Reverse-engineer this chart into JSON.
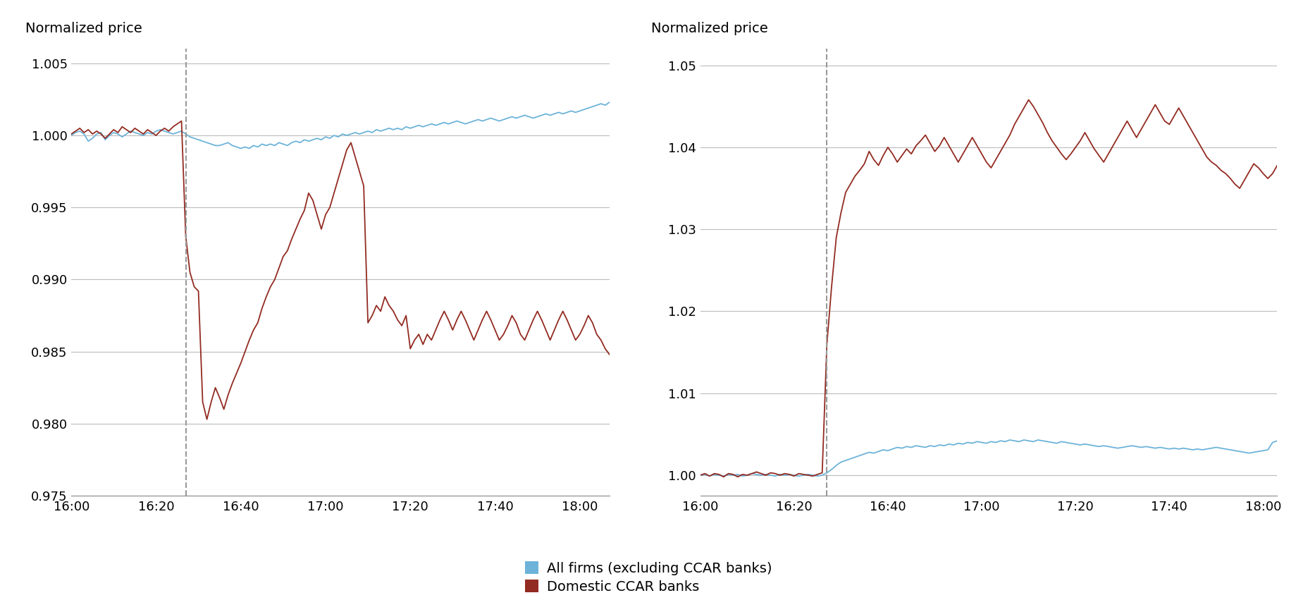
{
  "left_chart": {
    "ylabel": "Normalized price",
    "ylim": [
      0.975,
      1.006
    ],
    "yticks": [
      0.975,
      0.98,
      0.985,
      0.99,
      0.995,
      1.0,
      1.005
    ],
    "vline_x": 27,
    "time_labels": [
      "16:00",
      "16:20",
      "16:40",
      "17:00",
      "17:20",
      "17:40",
      "18:00"
    ],
    "time_ticks": [
      0,
      20,
      40,
      60,
      80,
      100,
      120
    ],
    "blue_data": [
      1.0,
      1.0002,
      1.0003,
      1.0001,
      0.9996,
      0.9998,
      1.0001,
      1.0002,
      0.9997,
      1.0,
      1.0002,
      1.0001,
      0.9999,
      1.0001,
      1.0003,
      1.0002,
      1.0001,
      1.0,
      1.0002,
      1.0001,
      1.0003,
      1.0004,
      1.0003,
      1.0002,
      1.0001,
      1.0002,
      1.0003,
      1.0001,
      0.9999,
      0.9998,
      0.9997,
      0.9996,
      0.9995,
      0.9994,
      0.9993,
      0.9993,
      0.9994,
      0.9995,
      0.9993,
      0.9992,
      0.9991,
      0.9992,
      0.9991,
      0.9993,
      0.9992,
      0.9994,
      0.9993,
      0.9994,
      0.9993,
      0.9995,
      0.9994,
      0.9993,
      0.9995,
      0.9996,
      0.9995,
      0.9997,
      0.9996,
      0.9997,
      0.9998,
      0.9997,
      0.9999,
      0.9998,
      1.0,
      0.9999,
      1.0001,
      1.0,
      1.0001,
      1.0002,
      1.0001,
      1.0002,
      1.0003,
      1.0002,
      1.0004,
      1.0003,
      1.0004,
      1.0005,
      1.0004,
      1.0005,
      1.0004,
      1.0006,
      1.0005,
      1.0006,
      1.0007,
      1.0006,
      1.0007,
      1.0008,
      1.0007,
      1.0008,
      1.0009,
      1.0008,
      1.0009,
      1.001,
      1.0009,
      1.0008,
      1.0009,
      1.001,
      1.0011,
      1.001,
      1.0011,
      1.0012,
      1.0011,
      1.001,
      1.0011,
      1.0012,
      1.0013,
      1.0012,
      1.0013,
      1.0014,
      1.0013,
      1.0012,
      1.0013,
      1.0014,
      1.0015,
      1.0014,
      1.0015,
      1.0016,
      1.0015,
      1.0016,
      1.0017,
      1.0016,
      1.0017,
      1.0018,
      1.0019,
      1.002,
      1.0021,
      1.0022,
      1.0021,
      1.0023
    ],
    "red_data": [
      1.0001,
      1.0003,
      1.0005,
      1.0002,
      1.0004,
      1.0001,
      1.0003,
      1.0001,
      0.9998,
      1.0001,
      1.0004,
      1.0002,
      1.0006,
      1.0004,
      1.0002,
      1.0005,
      1.0003,
      1.0001,
      1.0004,
      1.0002,
      1.0,
      1.0003,
      1.0005,
      1.0003,
      1.0006,
      1.0008,
      1.001,
      0.993,
      0.9905,
      0.9895,
      0.9892,
      0.9815,
      0.9803,
      0.9815,
      0.9825,
      0.9818,
      0.981,
      0.982,
      0.9828,
      0.9835,
      0.9842,
      0.985,
      0.9858,
      0.9865,
      0.987,
      0.988,
      0.9888,
      0.9895,
      0.99,
      0.9908,
      0.9916,
      0.992,
      0.9928,
      0.9935,
      0.9942,
      0.9948,
      0.996,
      0.9955,
      0.9945,
      0.9935,
      0.9945,
      0.995,
      0.996,
      0.997,
      0.998,
      0.999,
      0.9995,
      0.9985,
      0.9975,
      0.9965,
      0.987,
      0.9875,
      0.9882,
      0.9878,
      0.9888,
      0.9882,
      0.9878,
      0.9872,
      0.9868,
      0.9875,
      0.9852,
      0.9858,
      0.9862,
      0.9855,
      0.9862,
      0.9858,
      0.9865,
      0.9872,
      0.9878,
      0.9872,
      0.9865,
      0.9872,
      0.9878,
      0.9872,
      0.9865,
      0.9858,
      0.9865,
      0.9872,
      0.9878,
      0.9872,
      0.9865,
      0.9858,
      0.9862,
      0.9868,
      0.9875,
      0.987,
      0.9862,
      0.9858,
      0.9865,
      0.9872,
      0.9878,
      0.9872,
      0.9865,
      0.9858,
      0.9865,
      0.9872,
      0.9878,
      0.9872,
      0.9865,
      0.9858,
      0.9862,
      0.9868,
      0.9875,
      0.987,
      0.9862,
      0.9858,
      0.9852,
      0.9848
    ]
  },
  "right_chart": {
    "ylabel": "Normalized price",
    "ylim": [
      0.9975,
      1.052
    ],
    "yticks": [
      1.0,
      1.01,
      1.02,
      1.03,
      1.04,
      1.05
    ],
    "vline_x": 27,
    "time_labels": [
      "16:00",
      "16:20",
      "16:40",
      "17:00",
      "17:20",
      "17:40",
      "18:00"
    ],
    "time_ticks": [
      0,
      20,
      40,
      60,
      80,
      100,
      120
    ],
    "blue_data": [
      1.0,
      1.0001,
      0.9999,
      1.0001,
      1.0,
      0.9999,
      1.0001,
      1.0,
      1.0001,
      0.9999,
      1.0,
      1.0002,
      1.0001,
      1.0,
      1.0001,
      1.0,
      0.9999,
      1.0001,
      1.0,
      1.0001,
      1.0,
      0.9999,
      1.0,
      1.0001,
      1.0,
      0.9999,
      1.0,
      1.0003,
      1.0007,
      1.0012,
      1.0016,
      1.0018,
      1.002,
      1.0022,
      1.0024,
      1.0026,
      1.0028,
      1.0027,
      1.0029,
      1.0031,
      1.003,
      1.0032,
      1.0034,
      1.0033,
      1.0035,
      1.0034,
      1.0036,
      1.0035,
      1.0034,
      1.0036,
      1.0035,
      1.0037,
      1.0036,
      1.0038,
      1.0037,
      1.0039,
      1.0038,
      1.004,
      1.0039,
      1.0041,
      1.004,
      1.0039,
      1.0041,
      1.004,
      1.0042,
      1.0041,
      1.0043,
      1.0042,
      1.0041,
      1.0043,
      1.0042,
      1.0041,
      1.0043,
      1.0042,
      1.0041,
      1.004,
      1.0039,
      1.0041,
      1.004,
      1.0039,
      1.0038,
      1.0037,
      1.0038,
      1.0037,
      1.0036,
      1.0035,
      1.0036,
      1.0035,
      1.0034,
      1.0033,
      1.0034,
      1.0035,
      1.0036,
      1.0035,
      1.0034,
      1.0035,
      1.0034,
      1.0033,
      1.0034,
      1.0033,
      1.0032,
      1.0033,
      1.0032,
      1.0033,
      1.0032,
      1.0031,
      1.0032,
      1.0031,
      1.0032,
      1.0033,
      1.0034,
      1.0033,
      1.0032,
      1.0031,
      1.003,
      1.0029,
      1.0028,
      1.0027,
      1.0028,
      1.0029,
      1.003,
      1.0031,
      1.004,
      1.0042
    ],
    "red_data": [
      1.0,
      1.0002,
      0.9999,
      1.0002,
      1.0001,
      0.9998,
      1.0002,
      1.0001,
      0.9998,
      1.0001,
      1.0,
      1.0002,
      1.0004,
      1.0002,
      1.0,
      1.0003,
      1.0002,
      1.0,
      1.0002,
      1.0001,
      0.9999,
      1.0002,
      1.0001,
      1.0,
      0.9999,
      1.0001,
      1.0003,
      1.016,
      1.023,
      1.029,
      1.032,
      1.0345,
      1.0355,
      1.0365,
      1.0372,
      1.038,
      1.0395,
      1.0385,
      1.0378,
      1.039,
      1.04,
      1.0392,
      1.0382,
      1.039,
      1.0398,
      1.0392,
      1.0402,
      1.0408,
      1.0415,
      1.0405,
      1.0395,
      1.0402,
      1.0412,
      1.0402,
      1.0392,
      1.0382,
      1.0392,
      1.0402,
      1.0412,
      1.0402,
      1.0392,
      1.0382,
      1.0375,
      1.0385,
      1.0395,
      1.0405,
      1.0415,
      1.0428,
      1.0438,
      1.0448,
      1.0458,
      1.045,
      1.044,
      1.043,
      1.0418,
      1.0408,
      1.04,
      1.0392,
      1.0385,
      1.0392,
      1.04,
      1.0408,
      1.0418,
      1.0408,
      1.0398,
      1.039,
      1.0382,
      1.0392,
      1.0402,
      1.0412,
      1.0422,
      1.0432,
      1.0422,
      1.0412,
      1.0422,
      1.0432,
      1.0442,
      1.0452,
      1.0442,
      1.0432,
      1.0428,
      1.0438,
      1.0448,
      1.0438,
      1.0428,
      1.0418,
      1.0408,
      1.0398,
      1.0388,
      1.0382,
      1.0378,
      1.0372,
      1.0368,
      1.0362,
      1.0355,
      1.035,
      1.036,
      1.037,
      1.038,
      1.0375,
      1.0368,
      1.0362,
      1.0368,
      1.0378
    ]
  },
  "colors": {
    "blue": "#6db3d9",
    "red": "#922b21",
    "vline": "#999999"
  },
  "legend": {
    "blue_label": "All firms (excluding CCAR banks)",
    "red_label": "Domestic CCAR banks"
  }
}
